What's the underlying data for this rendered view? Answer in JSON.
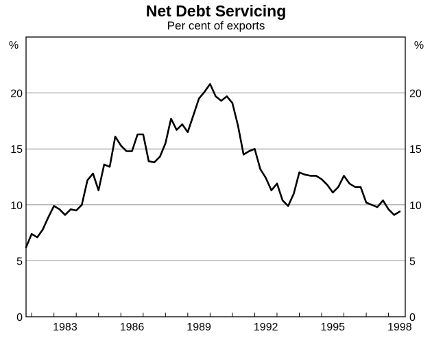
{
  "chart_data": {
    "type": "line",
    "title": "Net Debt Servicing",
    "subtitle": "Per cent of exports",
    "ylabel_left": "%",
    "ylabel_right": "%",
    "ylim": [
      0,
      25
    ],
    "yticks": [
      0,
      5,
      10,
      15,
      20
    ],
    "xlim": [
      1981.75,
      1998.75
    ],
    "xticks": [
      1983,
      1986,
      1989,
      1992,
      1995,
      1998
    ],
    "grid": "horizontal",
    "legend": "none",
    "colors": {
      "line": "#000000",
      "grid": "#909090",
      "frame": "#000000"
    },
    "series": [
      {
        "x": [
          1981.75,
          1982,
          1982.25,
          1982.5,
          1982.75,
          1983,
          1983.25,
          1983.5,
          1983.75,
          1984,
          1984.25,
          1984.5,
          1984.75,
          1985,
          1985.25,
          1985.5,
          1985.75,
          1986,
          1986.25,
          1986.5,
          1986.75,
          1987,
          1987.25,
          1987.5,
          1987.75,
          1988,
          1988.25,
          1988.5,
          1988.75,
          1989,
          1989.25,
          1989.5,
          1989.75,
          1990,
          1990.25,
          1990.5,
          1990.75,
          1991,
          1991.25,
          1991.5,
          1991.75,
          1992,
          1992.25,
          1992.5,
          1992.75,
          1993,
          1993.25,
          1993.5,
          1993.75,
          1994,
          1994.25,
          1994.5,
          1994.75,
          1995,
          1995.25,
          1995.5,
          1995.75,
          1996,
          1996.25,
          1996.5,
          1996.75,
          1997,
          1997.25,
          1997.5,
          1997.75,
          1998,
          1998.25,
          1998.5
        ],
        "values": [
          6.2,
          7.4,
          7.1,
          7.8,
          8.9,
          9.9,
          9.6,
          9.1,
          9.6,
          9.5,
          10.0,
          12.2,
          12.8,
          11.3,
          13.6,
          13.4,
          16.1,
          15.3,
          14.8,
          14.8,
          16.3,
          16.3,
          13.9,
          13.8,
          14.3,
          15.5,
          17.7,
          16.7,
          17.2,
          16.5,
          18.0,
          19.5,
          20.1,
          20.8,
          19.7,
          19.3,
          19.7,
          19.1,
          17.1,
          14.5,
          14.8,
          15.0,
          13.2,
          12.4,
          11.3,
          11.9,
          10.4,
          9.9,
          11.0,
          12.9,
          12.7,
          12.6,
          12.6,
          12.3,
          11.8,
          11.1,
          11.6,
          12.6,
          11.9,
          11.6,
          11.6,
          10.2,
          10.0,
          9.8,
          10.4,
          9.6,
          9.1,
          9.4
        ]
      }
    ]
  }
}
